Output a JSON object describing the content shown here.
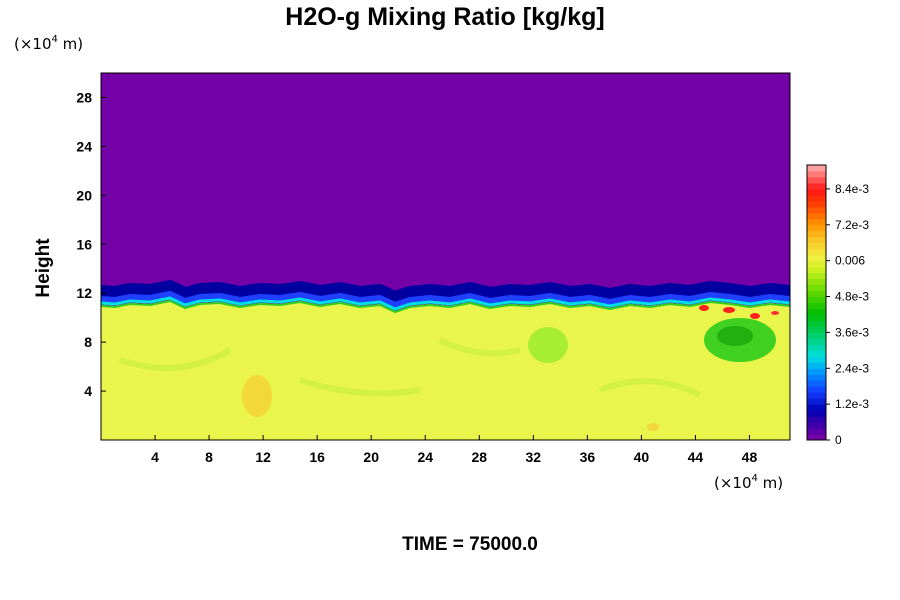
{
  "chart_data": {
    "type": "heatmap",
    "title": "H2O-g Mixing Ratio [kg/kg]",
    "ylabel": "Height",
    "xlabel": "",
    "x_unit": {
      "base": "(×10",
      "exp": "4",
      "tail": " m)"
    },
    "y_unit": {
      "base": "(×10",
      "exp": "4",
      "tail": " m)"
    },
    "xlim": [
      0,
      51
    ],
    "ylim": [
      0,
      30
    ],
    "x_ticks": [
      4,
      8,
      12,
      16,
      20,
      24,
      28,
      32,
      36,
      40,
      44,
      48
    ],
    "y_ticks": [
      4,
      8,
      12,
      16,
      20,
      24,
      28
    ],
    "x_tick_labels": [
      "4",
      "8",
      "12",
      "16",
      "20",
      "24",
      "28",
      "32",
      "36",
      "40",
      "44",
      "48"
    ],
    "y_tick_labels": [
      "4",
      "8",
      "12",
      "16",
      "20",
      "24",
      "28"
    ],
    "colorbar": {
      "range": [
        0,
        0.0092
      ],
      "ticks": [
        0,
        0.0012,
        0.0024,
        0.0036,
        0.0048,
        0.006,
        0.0072,
        0.0084
      ],
      "tick_labels": [
        "0",
        "1.2e-3",
        "2.4e-3",
        "3.6e-3",
        "4.8e-3",
        "0.006",
        "7.2e-3",
        "8.4e-3"
      ]
    },
    "fields": {
      "upper_value": 0.0,
      "lower_value": 0.0058,
      "interface_height": 11.5
    },
    "annotation": "TIME = 75000.0"
  },
  "colors": {
    "purple": "#7400a8",
    "navy": "#0000a0",
    "blue": "#2040ff",
    "cyan": "#00e0e0",
    "green": "#00c000",
    "lightgreen": "#a0f000",
    "yellow": "#f0f040",
    "orange": "#ffa000",
    "red": "#ff1010",
    "pink": "#ff9090"
  }
}
